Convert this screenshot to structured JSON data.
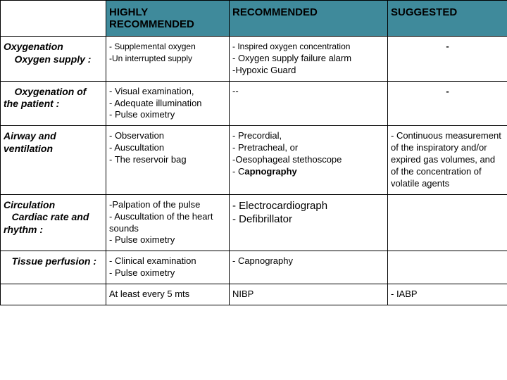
{
  "colors": {
    "header_bg": "#3f8a9b",
    "border": "#000000",
    "bg": "#ffffff"
  },
  "columns": [
    "",
    "HIGHLY RECOMMENDED",
    "RECOMMENDED",
    "SUGGESTED"
  ],
  "rows": [
    {
      "label": "Oxygenation\n    Oxygen supply :",
      "highly": "- Supplemental oxygen\n-Un interrupted supply",
      "rec_small": "- Inspired oxygen concentration",
      "rec_rest": "- Oxygen supply failure alarm\n-Hypoxic Guard",
      "sugg": "-"
    },
    {
      "label": "    Oxygenation of the patient :",
      "highly": "- Visual examination,\n- Adequate illumination\n- Pulse oximetry",
      "rec": "--",
      "sugg": "-"
    },
    {
      "label": "Airway and ventilation",
      "highly": "- Observation\n- Auscultation\n- The reservoir bag",
      "rec_pre": "- Precordial,\n- Pretracheal, or\n-Oesophageal stethoscope\n- C",
      "rec_bold": "apnography",
      "sugg": "- Continuous measurement of the inspiratory and/or expired gas volumes, and of the concentration of volatile agents"
    },
    {
      "label": "Circulation\n   Cardiac rate and rhythm :",
      "highly": "-Palpation of the pulse\n- Auscultation of the heart sounds\n- Pulse oximetry",
      "rec": "- Electrocardiograph\n- Defibrillator",
      "sugg": ""
    },
    {
      "label": "   Tissue perfusion :",
      "highly": "- Clinical examination\n- Pulse oximetry",
      "rec": "- Capnography",
      "sugg": ""
    },
    {
      "label": "",
      "highly": "At least every 5 mts",
      "rec": "NIBP",
      "sugg": "- IABP"
    }
  ]
}
